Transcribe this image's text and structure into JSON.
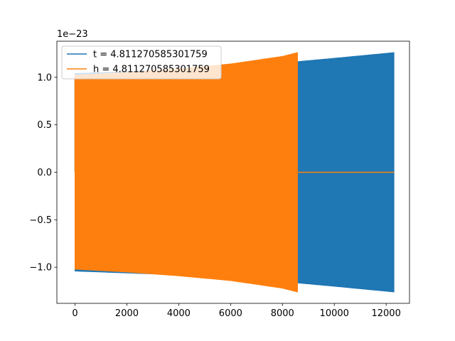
{
  "chart_data": {
    "type": "line",
    "title": "",
    "xlabel": "",
    "ylabel": "",
    "offset_text": "1e−23",
    "xlim": [
      -700,
      12900
    ],
    "ylim": [
      -1.38,
      1.38
    ],
    "xticks": [
      0,
      2000,
      4000,
      6000,
      8000,
      10000,
      12000
    ],
    "xtick_labels": [
      "0",
      "2000",
      "4000",
      "6000",
      "8000",
      "10000",
      "12000"
    ],
    "yticks": [
      -1.0,
      -0.5,
      0.0,
      0.5,
      1.0
    ],
    "ytick_labels": [
      "−1.0",
      "−0.5",
      "0.0",
      "0.5",
      "1.0"
    ],
    "grid": false,
    "legend_position": "top-left",
    "series": [
      {
        "name": "t = 4.811270585301759",
        "color": "#1f77b4",
        "kind": "oscillation-envelope",
        "x_start": 0,
        "x_end": 12300,
        "amplitude_start": 1.04,
        "amplitude_end": 1.26,
        "x": [
          0,
          2000,
          4000,
          6000,
          8000,
          10000,
          12300
        ],
        "upper": [
          1.04,
          1.06,
          1.08,
          1.11,
          1.15,
          1.2,
          1.26
        ],
        "lower": [
          -1.04,
          -1.06,
          -1.08,
          -1.11,
          -1.15,
          -1.2,
          -1.26
        ]
      },
      {
        "name": "h = 4.811270585301759",
        "color": "#ff7f0e",
        "kind": "oscillation-envelope",
        "x_start": 0,
        "x_end": 8580,
        "amplitude_start": 1.02,
        "amplitude_end": 1.26,
        "flat_after_x": 8580,
        "flat_until_x": 12300,
        "x": [
          0,
          2000,
          4000,
          6000,
          8000,
          8580
        ],
        "upper": [
          1.02,
          1.05,
          1.09,
          1.14,
          1.22,
          1.26
        ],
        "lower": [
          -1.02,
          -1.05,
          -1.09,
          -1.14,
          -1.22,
          -1.26
        ]
      }
    ]
  }
}
